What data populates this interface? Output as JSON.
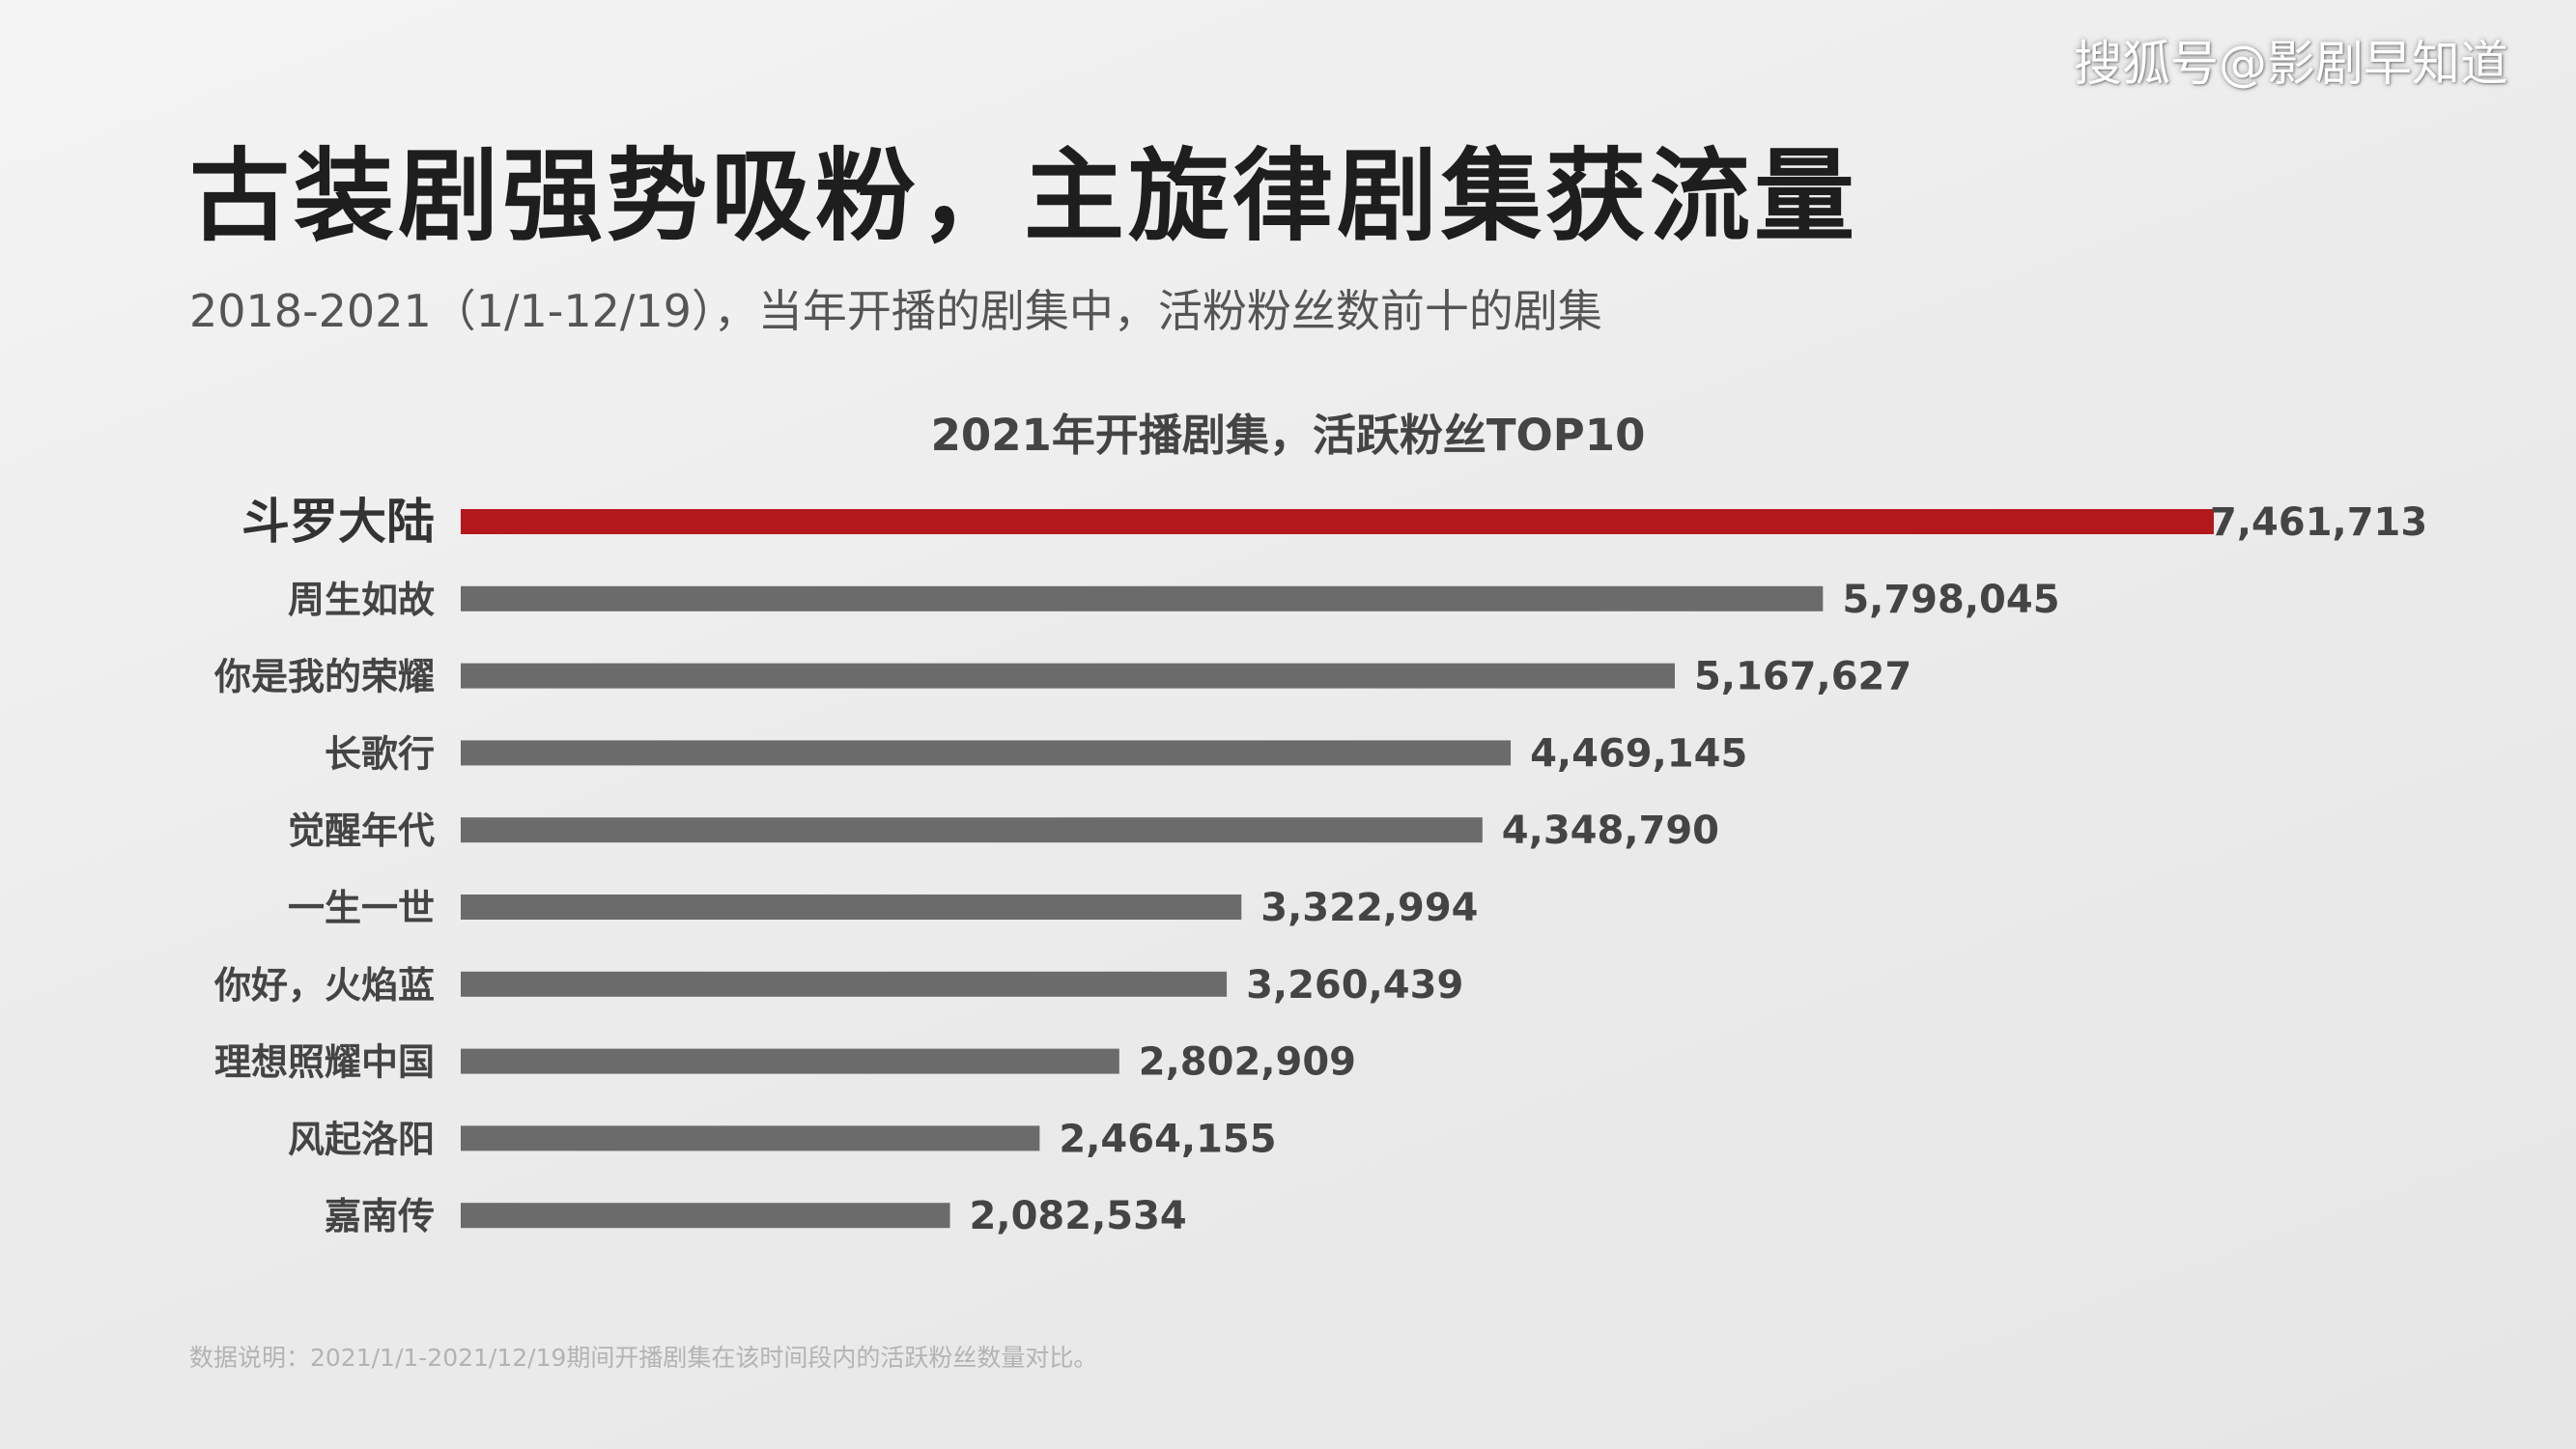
{
  "watermark": "搜狐号@影剧早知道",
  "header": {
    "title": "古装剧强势吸粉，主旋律剧集获流量",
    "subtitle": "2018-2021（1/1-12/19），当年开播的剧集中，活粉粉丝数前十的剧集"
  },
  "footnote": "数据说明：2021/1/1-2021/12/19期间开播剧集在该时间段内的活跃粉丝数量对比。",
  "colors": {
    "highlight": "#b3191c",
    "bar": "#6b6b6b",
    "label": "#444444"
  },
  "chart_data": {
    "type": "bar",
    "orientation": "horizontal",
    "title": "2021年开播剧集，活跃粉丝TOP10",
    "categories": [
      "斗罗大陆",
      "周生如故",
      "你是我的荣耀",
      "长歌行",
      "觉醒年代",
      "一生一世",
      "你好，火焰蓝",
      "理想照耀中国",
      "风起洛阳",
      "嘉南传"
    ],
    "values": [
      7461713,
      5798045,
      5167627,
      4469145,
      4348790,
      3322994,
      3260439,
      2802909,
      2464155,
      2082534
    ],
    "value_labels": [
      "7,461,713",
      "5,798,045",
      "5,167,627",
      "4,469,145",
      "4,348,790",
      "3,322,994",
      "3,260,439",
      "2,802,909",
      "2,464,155",
      "2,082,534"
    ],
    "highlight_index": 0,
    "xlim": [
      0,
      7461713
    ],
    "grid": false,
    "legend": "none"
  }
}
